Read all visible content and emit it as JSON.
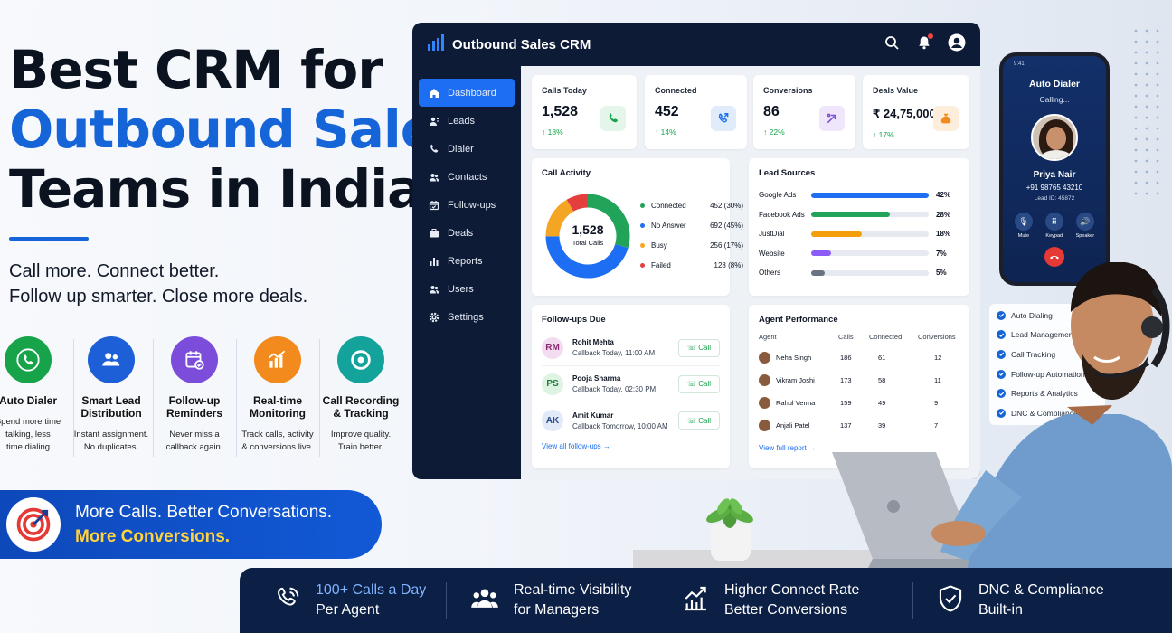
{
  "hero": {
    "line1": "Best CRM for",
    "line2": "Outbound Sales",
    "line3": "Teams in India",
    "sub1": "Call more. Connect better.",
    "sub2": "Follow up smarter. Close more deals."
  },
  "features": [
    {
      "title1": "Auto Dialer",
      "title2": "",
      "d1": "Spend more time",
      "d2": "talking, less",
      "d3": "time dialing",
      "color": "#16a34a",
      "icon": "phone-icon"
    },
    {
      "title1": "Smart Lead",
      "title2": "Distribution",
      "d1": "Instant assignment.",
      "d2": "No duplicates.",
      "d3": "",
      "color": "#1d5fd6",
      "icon": "users-icon"
    },
    {
      "title1": "Follow-up",
      "title2": "Reminders",
      "d1": "Never miss a",
      "d2": "callback again.",
      "d3": "",
      "color": "#7c4ddb",
      "icon": "calendar-check-icon"
    },
    {
      "title1": "Real-time",
      "title2": "Monitoring",
      "d1": "Track calls, activity",
      "d2": "& conversions live.",
      "d3": "",
      "color": "#f28a1d",
      "icon": "chart-icon"
    },
    {
      "title1": "Call Recording",
      "title2": "& Tracking",
      "d1": "Improve quality.",
      "d2": "Train better.",
      "d3": "",
      "color": "#13a39a",
      "icon": "record-icon"
    }
  ],
  "banner": {
    "line1": "More Calls. Better Conversations.",
    "line2": "More Conversions."
  },
  "crm": {
    "title": "Outbound Sales CRM",
    "nav": [
      "Dashboard",
      "Leads",
      "Dialer",
      "Contacts",
      "Follow-ups",
      "Deals",
      "Reports",
      "Users",
      "Settings"
    ],
    "kpis": [
      {
        "label": "Calls Today",
        "value": "1,528",
        "delta": "↑ 18%",
        "bg": "#e3f6e9",
        "fg": "#16a34a"
      },
      {
        "label": "Connected",
        "value": "452",
        "delta": "↑ 14%",
        "bg": "#e1ecfb",
        "fg": "#1d6ef2"
      },
      {
        "label": "Conversions",
        "value": "86",
        "delta": "↑ 22%",
        "bg": "#efe6fb",
        "fg": "#7c4ddb"
      },
      {
        "label": "Deals Value",
        "value": "₹ 24,75,000",
        "delta": "↑ 17%",
        "bg": "#fdeedc",
        "fg": "#f28a1d"
      }
    ],
    "call_activity": {
      "title": "Call Activity",
      "center_value": "1,528",
      "center_label": "Total Calls",
      "items": [
        {
          "label": "Connected",
          "value": "452 (30%)",
          "n": 452,
          "color": "#22a35a"
        },
        {
          "label": "No Answer",
          "value": "692 (45%)",
          "n": 692,
          "color": "#1d6ef2"
        },
        {
          "label": "Busy",
          "value": "256 (17%)",
          "n": 256,
          "color": "#f5a524"
        },
        {
          "label": "Failed",
          "value": "128 (8%)",
          "n": 128,
          "color": "#e53e3e"
        }
      ]
    },
    "lead_sources": {
      "title": "Lead Sources",
      "items": [
        {
          "label": "Google Ads",
          "pct": 42,
          "text": "42%",
          "color": "#1d6ef2"
        },
        {
          "label": "Facebook Ads",
          "pct": 28,
          "text": "28%",
          "color": "#22a35a"
        },
        {
          "label": "JustDial",
          "pct": 18,
          "text": "18%",
          "color": "#f59e0b"
        },
        {
          "label": "Website",
          "pct": 7,
          "text": "7%",
          "color": "#8b5cf6"
        },
        {
          "label": "Others",
          "pct": 5,
          "text": "5%",
          "color": "#6b7280"
        }
      ]
    },
    "followups": {
      "title": "Follow-ups Due",
      "link": "View all follow-ups →",
      "call_label": "Call",
      "items": [
        {
          "initials": "RM",
          "name": "Rohit Mehta",
          "when": "Callback Today, 11:00 AM",
          "bg": "#f3dcef",
          "fg": "#8a2b74"
        },
        {
          "initials": "PS",
          "name": "Pooja Sharma",
          "when": "Callback Today, 02:30 PM",
          "bg": "#dff3e3",
          "fg": "#1f7a3d"
        },
        {
          "initials": "AK",
          "name": "Amit Kumar",
          "when": "Callback Tomorrow, 10:00 AM",
          "bg": "#e2e9f8",
          "fg": "#2b4b8a"
        }
      ]
    },
    "agents": {
      "title": "Agent Performance",
      "link": "View full report →",
      "headers": [
        "Agent",
        "Calls",
        "Connected",
        "Conversions"
      ],
      "rows": [
        [
          "Neha Singh",
          "186",
          "61",
          "12"
        ],
        [
          "Vikram Joshi",
          "173",
          "58",
          "11"
        ],
        [
          "Rahul Verma",
          "159",
          "49",
          "9"
        ],
        [
          "Anjali Patel",
          "137",
          "39",
          "7"
        ]
      ]
    }
  },
  "phone": {
    "time": "9:41",
    "title": "Auto Dialer",
    "status": "Calling...",
    "name": "Priya Nair",
    "number": "+91 98765 43210",
    "lead": "Lead ID: 45872",
    "controls": [
      "Mute",
      "Keypad",
      "Speaker"
    ]
  },
  "checklist": [
    "Auto Dialing",
    "Lead Management",
    "Call Tracking",
    "Follow-up Automation",
    "Reports & Analytics",
    "DNC & Compliance"
  ],
  "bottom": [
    {
      "l1": "100+ Calls a Day",
      "l2": "Per Agent",
      "icon": "phone-icon"
    },
    {
      "l1": "Real-time Visibility",
      "l2": "for Managers",
      "icon": "team-icon"
    },
    {
      "l1": "Higher Connect Rate",
      "l2": "Better Conversions",
      "icon": "growth-chart-icon"
    },
    {
      "l1": "DNC & Compliance",
      "l2": "Built-in",
      "icon": "shield-check-icon"
    }
  ]
}
